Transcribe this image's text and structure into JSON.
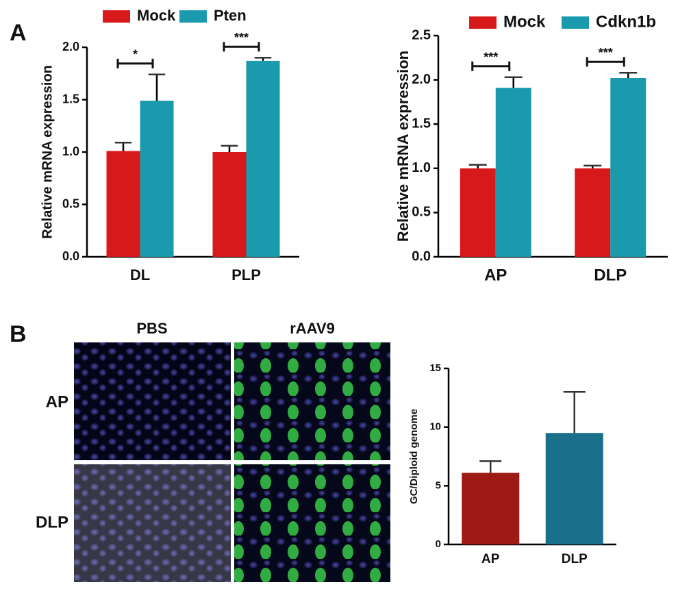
{
  "panels": [
    "A",
    "B"
  ],
  "micrograph": {
    "columns": [
      "PBS",
      "rAAV9"
    ],
    "rows": [
      "AP",
      "DLP"
    ]
  },
  "chart_data": [
    {
      "type": "bar",
      "y_label": "Relative mRNA expression",
      "categories": [
        "DL",
        "PLP"
      ],
      "series": [
        {
          "name": "Mock",
          "color": "#d7191c",
          "values": [
            1.01,
            1.0
          ],
          "errors": [
            0.08,
            0.06
          ]
        },
        {
          "name": "Pten",
          "color": "#1a9aac",
          "values": [
            1.49,
            1.87
          ],
          "errors": [
            0.25,
            0.03
          ]
        }
      ],
      "significance": [
        "*",
        "***"
      ],
      "ylim": [
        0,
        2.0
      ],
      "yticks": [
        {
          "value": 0,
          "label": "0.0"
        },
        {
          "value": 0.5,
          "label": "0.5"
        },
        {
          "value": 1.0,
          "label": "1.0"
        },
        {
          "value": 1.5,
          "label": "1.5"
        },
        {
          "value": 2.0,
          "label": "2.0"
        }
      ]
    },
    {
      "type": "bar",
      "y_label": "Relative mRNA expression",
      "categories": [
        "AP",
        "DLP"
      ],
      "series": [
        {
          "name": "Mock",
          "color": "#d7191c",
          "values": [
            1.0,
            1.0
          ],
          "errors": [
            0.04,
            0.03
          ]
        },
        {
          "name": "Cdkn1b",
          "color": "#1a9aac",
          "values": [
            1.91,
            2.02
          ],
          "errors": [
            0.12,
            0.06
          ]
        }
      ],
      "significance": [
        "***",
        "***"
      ],
      "ylim": [
        0,
        2.5
      ],
      "yticks": [
        {
          "value": 0,
          "label": "0.0"
        },
        {
          "value": 0.5,
          "label": "0.5"
        },
        {
          "value": 1.0,
          "label": "1.0"
        },
        {
          "value": 1.5,
          "label": "1.5"
        },
        {
          "value": 2.0,
          "label": "2.0"
        },
        {
          "value": 2.5,
          "label": "2.5"
        }
      ]
    },
    {
      "type": "bar",
      "y_label": "GC/Diploid genome",
      "categories": [
        "AP",
        "DLP"
      ],
      "values": [
        6.1,
        9.5
      ],
      "errors": [
        1.0,
        3.5
      ],
      "colors": [
        "#9e1a14",
        "#1a6f8a"
      ],
      "ylim": [
        0,
        15
      ],
      "yticks": [
        0,
        5,
        10,
        15
      ]
    }
  ]
}
